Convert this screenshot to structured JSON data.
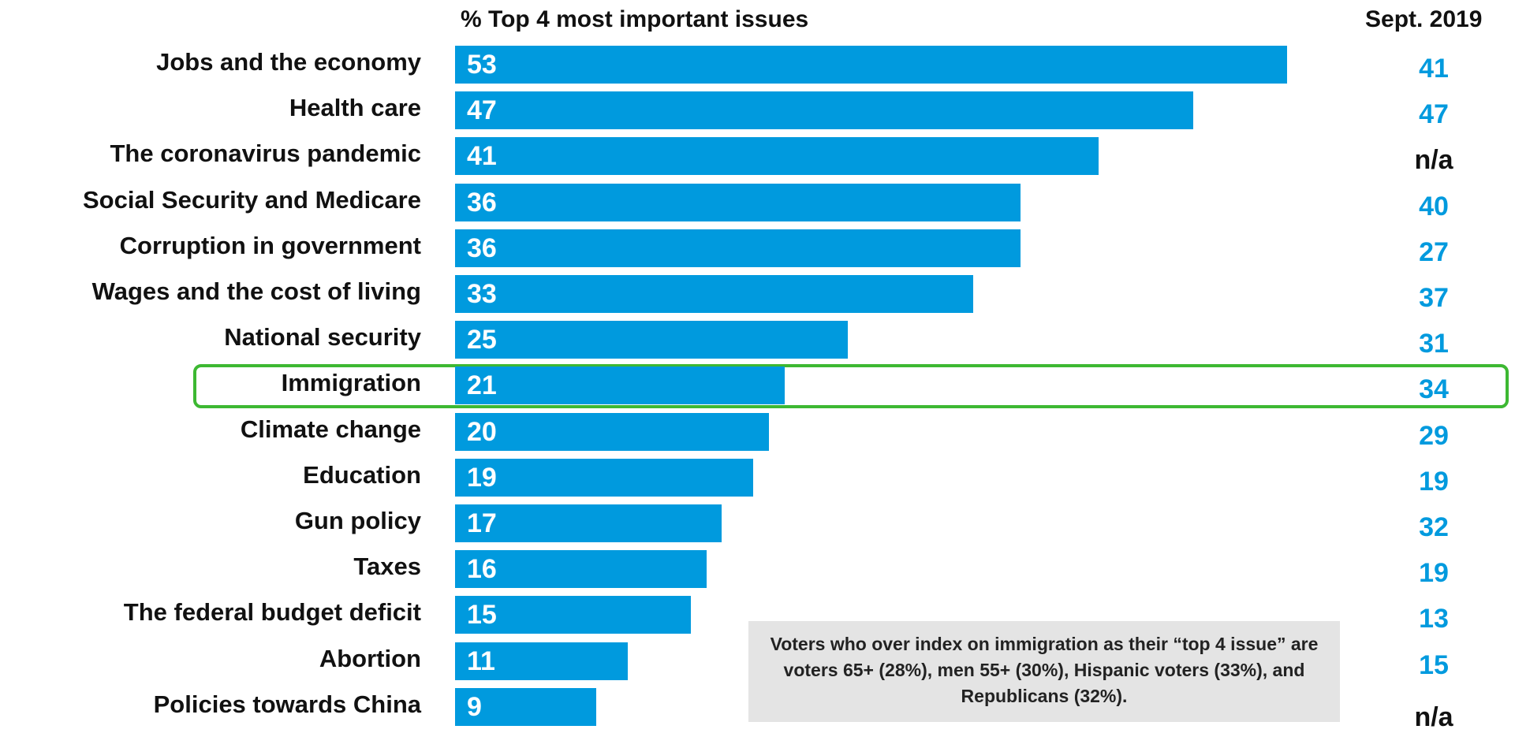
{
  "colors": {
    "bar": "#009ADE",
    "sept_value": "#009ADE",
    "na_value": "#111111",
    "highlight_border": "#3DB832",
    "note_background": "#E4E4E4"
  },
  "chart_data": {
    "type": "bar",
    "orientation": "horizontal",
    "title": "% Top 4 most important issues",
    "comparison_column_header": "Sept. 2019",
    "categories": [
      "Jobs and the economy",
      "Health care",
      "The coronavirus pandemic",
      "Social Security and Medicare",
      "Corruption in government",
      "Wages and the cost of living",
      "National security",
      "Immigration",
      "Climate change",
      "Education",
      "Gun policy",
      "Taxes",
      "The federal budget deficit",
      "Abortion",
      "Policies towards China"
    ],
    "values": [
      53,
      47,
      41,
      36,
      36,
      33,
      25,
      21,
      20,
      19,
      17,
      16,
      15,
      11,
      9
    ],
    "data_labels": [
      "53",
      "47",
      "41",
      "36",
      "36",
      "33",
      "25",
      "21",
      "20",
      "19",
      "17",
      "16",
      "15",
      "11",
      "9"
    ],
    "sept_2019_values": [
      "41",
      "47",
      "n/a",
      "40",
      "27",
      "37",
      "31",
      "34",
      "29",
      "19",
      "32",
      "19",
      "13",
      "15",
      "n/a"
    ],
    "highlighted_category": "Immigration",
    "grid": false,
    "legend": "none"
  },
  "note": {
    "text": "Voters who over index on immigration as their “top 4 issue” are voters 65+ (28%), men 55+ (30%), Hispanic voters (33%), and Republicans (32%)."
  }
}
